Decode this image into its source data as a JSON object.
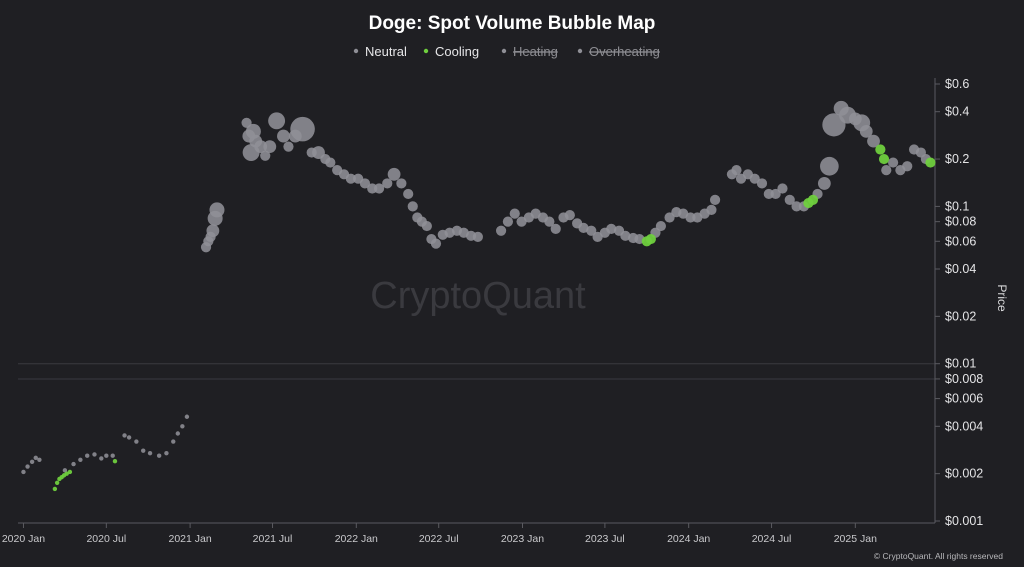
{
  "chart_data": {
    "type": "scatter",
    "title": "Doge: Spot Volume Bubble Map",
    "ylabel": "Price",
    "y_scale": "log",
    "ylim": [
      0.001,
      0.6
    ],
    "xlim": [
      "2019-12-20",
      "2025-06-25"
    ],
    "y_ticks": [
      {
        "value": 0.6,
        "label": "$0.6"
      },
      {
        "value": 0.4,
        "label": "$0.4"
      },
      {
        "value": 0.2,
        "label": "$0.2"
      },
      {
        "value": 0.1,
        "label": "$0.1"
      },
      {
        "value": 0.08,
        "label": "$0.08"
      },
      {
        "value": 0.06,
        "label": "$0.06"
      },
      {
        "value": 0.04,
        "label": "$0.04"
      },
      {
        "value": 0.02,
        "label": "$0.02"
      },
      {
        "value": 0.01,
        "label": "$0.01"
      },
      {
        "value": 0.008,
        "label": "$0.008"
      },
      {
        "value": 0.006,
        "label": "$0.006"
      },
      {
        "value": 0.004,
        "label": "$0.004"
      },
      {
        "value": 0.002,
        "label": "$0.002"
      },
      {
        "value": 0.001,
        "label": "$0.001"
      }
    ],
    "x_ticks": [
      {
        "value": "2020-01-01",
        "label": "2020 Jan"
      },
      {
        "value": "2020-07-01",
        "label": "2020 Jul"
      },
      {
        "value": "2021-01-01",
        "label": "2021 Jan"
      },
      {
        "value": "2021-07-01",
        "label": "2021 Jul"
      },
      {
        "value": "2022-01-01",
        "label": "2022 Jan"
      },
      {
        "value": "2022-07-01",
        "label": "2022 Jul"
      },
      {
        "value": "2023-01-01",
        "label": "2023 Jan"
      },
      {
        "value": "2023-07-01",
        "label": "2023 Jul"
      },
      {
        "value": "2024-01-01",
        "label": "2024 Jan"
      },
      {
        "value": "2024-07-01",
        "label": "2024 Jul"
      },
      {
        "value": "2025-01-01",
        "label": "2025 Jan"
      }
    ],
    "gridlines_y": [
      0.01,
      0.008
    ],
    "legend": {
      "placement": "top-center",
      "entries": [
        {
          "name": "Neutral",
          "color": "#8f8f96",
          "active": true
        },
        {
          "name": "Cooling",
          "color": "#6fcf3e",
          "active": true
        },
        {
          "name": "Heating",
          "color": "#8f8f96",
          "active": false
        },
        {
          "name": "Overheating",
          "color": "#8f8f96",
          "active": false
        }
      ]
    },
    "bubble_size": "spot volume (relative)",
    "series": [
      {
        "name": "Neutral",
        "color": "#8f8f96",
        "points": [
          {
            "x": "2020-01-01",
            "y": 0.00205,
            "s": 1
          },
          {
            "x": "2020-01-10",
            "y": 0.00222,
            "s": 1
          },
          {
            "x": "2020-01-20",
            "y": 0.00238,
            "s": 1
          },
          {
            "x": "2020-01-28",
            "y": 0.00252,
            "s": 1
          },
          {
            "x": "2020-02-05",
            "y": 0.00245,
            "s": 1
          },
          {
            "x": "2020-04-01",
            "y": 0.0021,
            "s": 1
          },
          {
            "x": "2020-04-20",
            "y": 0.0023,
            "s": 1
          },
          {
            "x": "2020-05-05",
            "y": 0.00245,
            "s": 1
          },
          {
            "x": "2020-05-20",
            "y": 0.0026,
            "s": 1
          },
          {
            "x": "2020-06-05",
            "y": 0.00265,
            "s": 1
          },
          {
            "x": "2020-06-20",
            "y": 0.0025,
            "s": 1
          },
          {
            "x": "2020-07-01",
            "y": 0.0026,
            "s": 1
          },
          {
            "x": "2020-07-15",
            "y": 0.0026,
            "s": 1
          },
          {
            "x": "2020-08-10",
            "y": 0.0035,
            "s": 1
          },
          {
            "x": "2020-08-20",
            "y": 0.0034,
            "s": 1
          },
          {
            "x": "2020-09-05",
            "y": 0.0032,
            "s": 1
          },
          {
            "x": "2020-09-20",
            "y": 0.0028,
            "s": 1
          },
          {
            "x": "2020-10-05",
            "y": 0.0027,
            "s": 1
          },
          {
            "x": "2020-10-25",
            "y": 0.0026,
            "s": 1
          },
          {
            "x": "2020-11-10",
            "y": 0.0027,
            "s": 1
          },
          {
            "x": "2020-11-25",
            "y": 0.0032,
            "s": 1
          },
          {
            "x": "2020-12-05",
            "y": 0.0036,
            "s": 1
          },
          {
            "x": "2020-12-15",
            "y": 0.004,
            "s": 1
          },
          {
            "x": "2020-12-25",
            "y": 0.0046,
            "s": 1
          },
          {
            "x": "2021-02-05",
            "y": 0.055,
            "s": 2
          },
          {
            "x": "2021-02-10",
            "y": 0.06,
            "s": 2
          },
          {
            "x": "2021-02-15",
            "y": 0.064,
            "s": 2
          },
          {
            "x": "2021-02-20",
            "y": 0.07,
            "s": 3
          },
          {
            "x": "2021-02-25",
            "y": 0.084,
            "s": 4
          },
          {
            "x": "2021-03-01",
            "y": 0.095,
            "s": 4
          },
          {
            "x": "2021-05-05",
            "y": 0.34,
            "s": 2
          },
          {
            "x": "2021-05-10",
            "y": 0.28,
            "s": 3
          },
          {
            "x": "2021-05-15",
            "y": 0.22,
            "s": 5
          },
          {
            "x": "2021-05-20",
            "y": 0.3,
            "s": 4
          },
          {
            "x": "2021-05-25",
            "y": 0.26,
            "s": 3
          },
          {
            "x": "2021-06-05",
            "y": 0.24,
            "s": 3
          },
          {
            "x": "2021-06-15",
            "y": 0.21,
            "s": 2
          },
          {
            "x": "2021-06-25",
            "y": 0.24,
            "s": 3
          },
          {
            "x": "2021-07-10",
            "y": 0.35,
            "s": 5
          },
          {
            "x": "2021-07-25",
            "y": 0.28,
            "s": 3
          },
          {
            "x": "2021-08-05",
            "y": 0.24,
            "s": 2
          },
          {
            "x": "2021-08-20",
            "y": 0.28,
            "s": 3
          },
          {
            "x": "2021-09-05",
            "y": 0.31,
            "s": 10
          },
          {
            "x": "2021-09-25",
            "y": 0.22,
            "s": 2
          },
          {
            "x": "2021-10-10",
            "y": 0.22,
            "s": 3
          },
          {
            "x": "2021-10-25",
            "y": 0.2,
            "s": 2
          },
          {
            "x": "2021-11-05",
            "y": 0.19,
            "s": 2
          },
          {
            "x": "2021-11-20",
            "y": 0.17,
            "s": 2
          },
          {
            "x": "2021-12-05",
            "y": 0.16,
            "s": 2
          },
          {
            "x": "2021-12-20",
            "y": 0.15,
            "s": 2
          },
          {
            "x": "2022-01-05",
            "y": 0.15,
            "s": 2
          },
          {
            "x": "2022-01-20",
            "y": 0.14,
            "s": 2
          },
          {
            "x": "2022-02-05",
            "y": 0.13,
            "s": 2
          },
          {
            "x": "2022-02-20",
            "y": 0.13,
            "s": 2
          },
          {
            "x": "2022-03-10",
            "y": 0.14,
            "s": 2
          },
          {
            "x": "2022-03-25",
            "y": 0.16,
            "s": 3
          },
          {
            "x": "2022-04-10",
            "y": 0.14,
            "s": 2
          },
          {
            "x": "2022-04-25",
            "y": 0.12,
            "s": 2
          },
          {
            "x": "2022-05-05",
            "y": 0.1,
            "s": 2
          },
          {
            "x": "2022-05-15",
            "y": 0.085,
            "s": 2
          },
          {
            "x": "2022-05-25",
            "y": 0.08,
            "s": 2
          },
          {
            "x": "2022-06-05",
            "y": 0.075,
            "s": 2
          },
          {
            "x": "2022-06-15",
            "y": 0.062,
            "s": 2
          },
          {
            "x": "2022-06-25",
            "y": 0.058,
            "s": 2
          },
          {
            "x": "2022-07-10",
            "y": 0.066,
            "s": 2
          },
          {
            "x": "2022-07-25",
            "y": 0.068,
            "s": 2
          },
          {
            "x": "2022-08-10",
            "y": 0.07,
            "s": 2
          },
          {
            "x": "2022-08-25",
            "y": 0.068,
            "s": 2
          },
          {
            "x": "2022-09-10",
            "y": 0.065,
            "s": 2
          },
          {
            "x": "2022-09-25",
            "y": 0.064,
            "s": 2
          },
          {
            "x": "2022-11-15",
            "y": 0.07,
            "s": 2
          },
          {
            "x": "2022-11-30",
            "y": 0.08,
            "s": 2
          },
          {
            "x": "2022-12-15",
            "y": 0.09,
            "s": 2
          },
          {
            "x": "2022-12-30",
            "y": 0.08,
            "s": 2
          },
          {
            "x": "2023-01-15",
            "y": 0.085,
            "s": 2
          },
          {
            "x": "2023-01-30",
            "y": 0.09,
            "s": 2
          },
          {
            "x": "2023-02-15",
            "y": 0.085,
            "s": 2
          },
          {
            "x": "2023-03-01",
            "y": 0.08,
            "s": 2
          },
          {
            "x": "2023-03-15",
            "y": 0.072,
            "s": 2
          },
          {
            "x": "2023-04-01",
            "y": 0.085,
            "s": 2
          },
          {
            "x": "2023-04-15",
            "y": 0.088,
            "s": 2
          },
          {
            "x": "2023-05-01",
            "y": 0.078,
            "s": 2
          },
          {
            "x": "2023-05-15",
            "y": 0.073,
            "s": 2
          },
          {
            "x": "2023-06-01",
            "y": 0.07,
            "s": 2
          },
          {
            "x": "2023-06-15",
            "y": 0.064,
            "s": 2
          },
          {
            "x": "2023-07-01",
            "y": 0.068,
            "s": 2
          },
          {
            "x": "2023-07-15",
            "y": 0.072,
            "s": 2
          },
          {
            "x": "2023-08-01",
            "y": 0.07,
            "s": 2
          },
          {
            "x": "2023-08-15",
            "y": 0.065,
            "s": 2
          },
          {
            "x": "2023-09-01",
            "y": 0.063,
            "s": 2
          },
          {
            "x": "2023-09-15",
            "y": 0.062,
            "s": 2
          },
          {
            "x": "2023-10-20",
            "y": 0.068,
            "s": 2
          },
          {
            "x": "2023-11-01",
            "y": 0.075,
            "s": 2
          },
          {
            "x": "2023-11-20",
            "y": 0.085,
            "s": 2
          },
          {
            "x": "2023-12-05",
            "y": 0.092,
            "s": 2
          },
          {
            "x": "2023-12-20",
            "y": 0.09,
            "s": 2
          },
          {
            "x": "2024-01-05",
            "y": 0.085,
            "s": 2
          },
          {
            "x": "2024-01-20",
            "y": 0.085,
            "s": 2
          },
          {
            "x": "2024-02-05",
            "y": 0.09,
            "s": 2
          },
          {
            "x": "2024-02-20",
            "y": 0.095,
            "s": 2
          },
          {
            "x": "2024-02-28",
            "y": 0.11,
            "s": 2
          },
          {
            "x": "2024-04-05",
            "y": 0.16,
            "s": 2
          },
          {
            "x": "2024-04-15",
            "y": 0.17,
            "s": 2
          },
          {
            "x": "2024-04-25",
            "y": 0.15,
            "s": 2
          },
          {
            "x": "2024-05-10",
            "y": 0.16,
            "s": 2
          },
          {
            "x": "2024-05-25",
            "y": 0.15,
            "s": 2
          },
          {
            "x": "2024-06-10",
            "y": 0.14,
            "s": 2
          },
          {
            "x": "2024-06-25",
            "y": 0.12,
            "s": 2
          },
          {
            "x": "2024-07-10",
            "y": 0.12,
            "s": 2
          },
          {
            "x": "2024-07-25",
            "y": 0.13,
            "s": 2
          },
          {
            "x": "2024-08-10",
            "y": 0.11,
            "s": 2
          },
          {
            "x": "2024-08-25",
            "y": 0.1,
            "s": 2
          },
          {
            "x": "2024-09-10",
            "y": 0.1,
            "s": 2
          },
          {
            "x": "2024-10-10",
            "y": 0.12,
            "s": 2
          },
          {
            "x": "2024-10-25",
            "y": 0.14,
            "s": 3
          },
          {
            "x": "2024-11-05",
            "y": 0.18,
            "s": 6
          },
          {
            "x": "2024-11-15",
            "y": 0.33,
            "s": 9
          },
          {
            "x": "2024-12-01",
            "y": 0.42,
            "s": 4
          },
          {
            "x": "2024-12-15",
            "y": 0.38,
            "s": 5
          },
          {
            "x": "2025-01-01",
            "y": 0.36,
            "s": 3
          },
          {
            "x": "2025-01-15",
            "y": 0.34,
            "s": 5
          },
          {
            "x": "2025-01-25",
            "y": 0.3,
            "s": 3
          },
          {
            "x": "2025-02-10",
            "y": 0.26,
            "s": 3
          },
          {
            "x": "2025-03-10",
            "y": 0.17,
            "s": 2
          },
          {
            "x": "2025-03-25",
            "y": 0.19,
            "s": 2
          },
          {
            "x": "2025-04-10",
            "y": 0.17,
            "s": 2
          },
          {
            "x": "2025-04-25",
            "y": 0.18,
            "s": 2
          },
          {
            "x": "2025-05-10",
            "y": 0.23,
            "s": 2
          },
          {
            "x": "2025-05-25",
            "y": 0.22,
            "s": 2
          },
          {
            "x": "2025-06-05",
            "y": 0.2,
            "s": 2
          }
        ]
      },
      {
        "name": "Cooling",
        "color": "#6fcf3e",
        "points": [
          {
            "x": "2020-03-10",
            "y": 0.0016,
            "s": 1
          },
          {
            "x": "2020-03-15",
            "y": 0.00175,
            "s": 1
          },
          {
            "x": "2020-03-20",
            "y": 0.00185,
            "s": 1
          },
          {
            "x": "2020-03-25",
            "y": 0.0019,
            "s": 1
          },
          {
            "x": "2020-03-30",
            "y": 0.00195,
            "s": 1
          },
          {
            "x": "2020-04-05",
            "y": 0.002,
            "s": 1
          },
          {
            "x": "2020-04-12",
            "y": 0.00205,
            "s": 1
          },
          {
            "x": "2020-07-20",
            "y": 0.0024,
            "s": 1
          },
          {
            "x": "2023-10-01",
            "y": 0.06,
            "s": 2
          },
          {
            "x": "2023-10-10",
            "y": 0.062,
            "s": 2
          },
          {
            "x": "2024-09-20",
            "y": 0.105,
            "s": 2
          },
          {
            "x": "2024-09-30",
            "y": 0.11,
            "s": 2
          },
          {
            "x": "2025-02-25",
            "y": 0.23,
            "s": 2
          },
          {
            "x": "2025-03-05",
            "y": 0.2,
            "s": 2
          },
          {
            "x": "2025-06-15",
            "y": 0.19,
            "s": 2
          }
        ]
      }
    ]
  },
  "watermark": "CryptoQuant",
  "copyright": "© CryptoQuant. All rights reserved"
}
